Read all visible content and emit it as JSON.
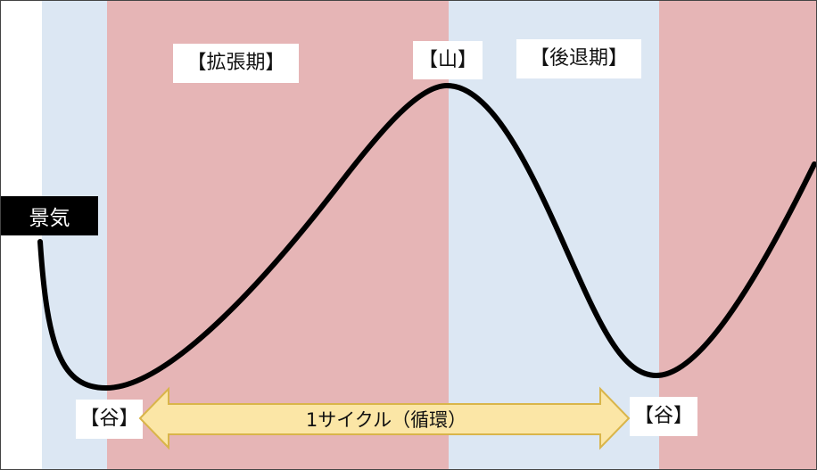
{
  "colors": {
    "expansion_band": "#e6b5b6",
    "recession_band": "#dce7f3",
    "curve": "#000000",
    "arrow_fill": "#fbe6a6",
    "arrow_stroke": "#d9b54a",
    "economy_label_bg": "#000000"
  },
  "diagram": {
    "y_axis_label": "景気",
    "phase_expansion": "【拡張期】",
    "phase_recession": "【後退期】",
    "peak": "【山】",
    "trough_left": "【谷】",
    "trough_right": "【谷】",
    "cycle": "1サイクル（循環）"
  }
}
